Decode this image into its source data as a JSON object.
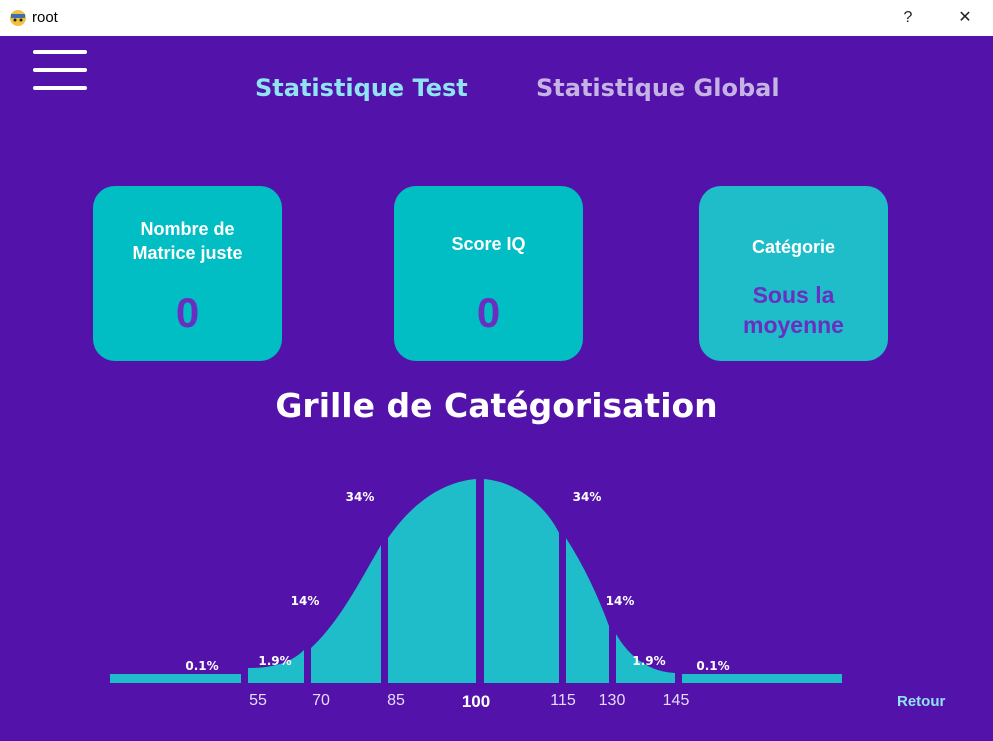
{
  "window": {
    "title": "root",
    "help_label": "?",
    "close_label": "✕"
  },
  "nav": {
    "tab_test": "Statistique Test",
    "tab_global": "Statistique Global"
  },
  "cards": {
    "correct": {
      "label_line1": "Nombre de",
      "label_line2": "Matrice juste",
      "value": "0"
    },
    "iq": {
      "label": "Score IQ",
      "value": "0"
    },
    "category": {
      "label": "Catégorie",
      "value_line1": "Sous la",
      "value_line2": "moyenne"
    }
  },
  "grid": {
    "title": "Grille de Catégorisation",
    "percent_labels": [
      "0.1%",
      "1.9%",
      "14%",
      "34%",
      "34%",
      "14%",
      "1.9%",
      "0.1%"
    ],
    "tick_labels": [
      "55",
      "70",
      "85",
      "100",
      "115",
      "130",
      "145"
    ]
  },
  "footer": {
    "retour_label": "Retour"
  },
  "colors": {
    "background": "#5312aa",
    "accent": "#01bec4",
    "value_text": "#6a2ec0"
  }
}
